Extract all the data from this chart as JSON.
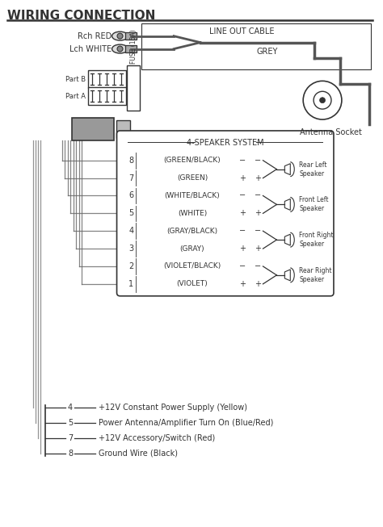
{
  "title": "WIRING CONNECTION",
  "bg_color": "#ffffff",
  "line_color": "#333333",
  "speaker_rows": [
    {
      "num": "8",
      "label": "(GREEN/BLACK)",
      "polarity": "−",
      "group": "Rear Left Speaker"
    },
    {
      "num": "7",
      "label": "(GREEN)",
      "polarity": "+",
      "group": "Rear Left Speaker"
    },
    {
      "num": "6",
      "label": "(WHITE/BLACK)",
      "polarity": "−",
      "group": "Front Left Speaker"
    },
    {
      "num": "5",
      "label": "(WHITE)",
      "polarity": "+",
      "group": "Front Left Speaker"
    },
    {
      "num": "4",
      "label": "(GRAY/BLACK)",
      "polarity": "−",
      "group": "Front Right Speaker"
    },
    {
      "num": "3",
      "label": "(GRAY)",
      "polarity": "+",
      "group": "Front Right Speaker"
    },
    {
      "num": "2",
      "label": "(VIOLET/BLACK)",
      "polarity": "−",
      "group": "Rear Right Speaker"
    },
    {
      "num": "1",
      "label": "(VIOLET)",
      "polarity": "+",
      "group": "Rear Right Speaker"
    }
  ],
  "power_rows": [
    {
      "num": "8",
      "desc": "Ground Wire (Black)"
    },
    {
      "num": "7",
      "desc": "+12V Accessory/Switch (Red)"
    },
    {
      "num": "5",
      "desc": "Power Antenna/Amplifier Turn On (Blue/Red)"
    },
    {
      "num": "4",
      "desc": "+12V Constant Power Supply (Yellow)"
    }
  ],
  "rca_labels": [
    "Rch RED",
    "Lch WHITE"
  ],
  "line_out_label": "LINE OUT CABLE",
  "grey_label": "GREY",
  "part_labels": [
    "Part B",
    "Part A"
  ],
  "antenna_label": "Antenna Socket",
  "fuse_label": "FUSE (15A)",
  "speaker_system_label": "4-SPEAKER SYSTEM",
  "speaker_groups": [
    [
      0,
      1,
      "Rear Left\nSpeaker"
    ],
    [
      2,
      3,
      "Front Left\nSpeaker"
    ],
    [
      4,
      5,
      "Front Right\nSpeaker"
    ],
    [
      6,
      7,
      "Rear Right\nSpeaker"
    ]
  ]
}
